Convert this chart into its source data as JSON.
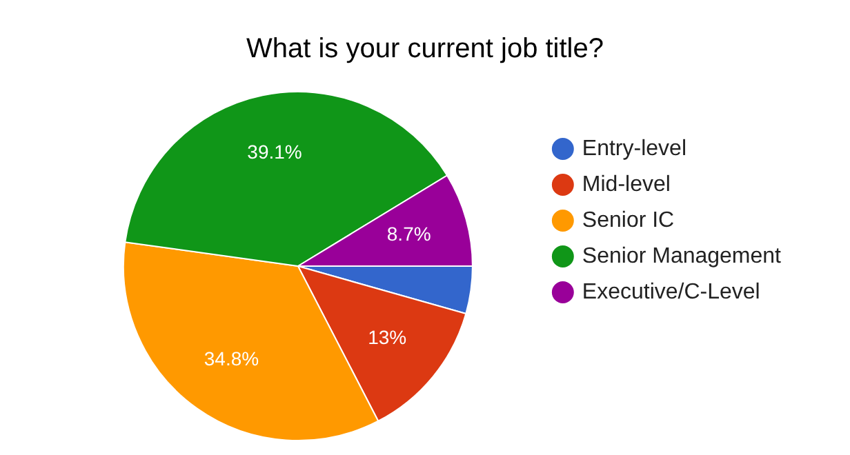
{
  "chart_data": {
    "type": "pie",
    "title": "What is your current job title?",
    "categories": [
      "Entry-level",
      "Mid-level",
      "Senior IC",
      "Senior Management",
      "Executive/C-Level"
    ],
    "values": [
      4.4,
      13,
      34.8,
      39.1,
      8.7
    ],
    "value_labels": [
      null,
      "13%",
      "34.8%",
      "39.1%",
      "8.7%"
    ],
    "colors": [
      "#3366cc",
      "#dc3912",
      "#ff9900",
      "#109618",
      "#990099"
    ],
    "legend": "right"
  }
}
